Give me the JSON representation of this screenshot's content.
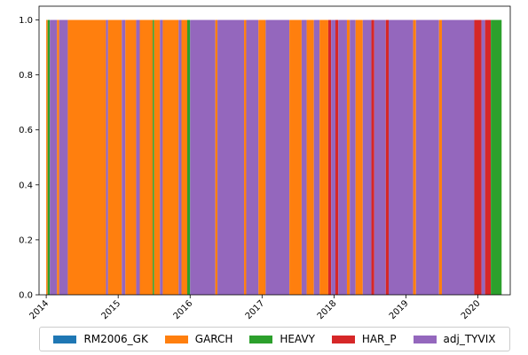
{
  "chart_data": {
    "type": "area",
    "stacked": true,
    "xlabel": "",
    "ylabel": "",
    "xlim": [
      2013.9,
      2020.45
    ],
    "ylim": [
      0.0,
      1.05
    ],
    "yticks": [
      0.0,
      0.2,
      0.4,
      0.6,
      0.8,
      1.0
    ],
    "ytick_labels": [
      "0.0",
      "0.2",
      "0.4",
      "0.6",
      "0.8",
      "1.0"
    ],
    "xticks": [
      2014,
      2015,
      2016,
      2017,
      2018,
      2019,
      2020
    ],
    "xtick_labels": [
      "2014",
      "2015",
      "2016",
      "2017",
      "2018",
      "2019",
      "2020"
    ],
    "legend_position": "bottom-center",
    "series": [
      {
        "name": "RM2006_GK",
        "color": "#1f77b4"
      },
      {
        "name": "GARCH",
        "color": "#ff7f0e"
      },
      {
        "name": "HEAVY",
        "color": "#2ca02c"
      },
      {
        "name": "HAR_P",
        "color": "#d62728"
      },
      {
        "name": "adj_TYVIX",
        "color": "#9467bd"
      }
    ],
    "segments": [
      {
        "start": 2014.0,
        "end": 2014.02,
        "model": "GARCH"
      },
      {
        "start": 2014.02,
        "end": 2014.05,
        "model": "HEAVY"
      },
      {
        "start": 2014.05,
        "end": 2014.15,
        "model": "adj_TYVIX"
      },
      {
        "start": 2014.15,
        "end": 2014.18,
        "model": "GARCH"
      },
      {
        "start": 2014.18,
        "end": 2014.3,
        "model": "adj_TYVIX"
      },
      {
        "start": 2014.3,
        "end": 2014.83,
        "model": "GARCH"
      },
      {
        "start": 2014.83,
        "end": 2014.86,
        "model": "adj_TYVIX"
      },
      {
        "start": 2014.86,
        "end": 2015.05,
        "model": "GARCH"
      },
      {
        "start": 2015.05,
        "end": 2015.1,
        "model": "adj_TYVIX"
      },
      {
        "start": 2015.1,
        "end": 2015.25,
        "model": "GARCH"
      },
      {
        "start": 2015.25,
        "end": 2015.3,
        "model": "adj_TYVIX"
      },
      {
        "start": 2015.3,
        "end": 2015.48,
        "model": "GARCH"
      },
      {
        "start": 2015.48,
        "end": 2015.5,
        "model": "HEAVY"
      },
      {
        "start": 2015.5,
        "end": 2015.58,
        "model": "GARCH"
      },
      {
        "start": 2015.58,
        "end": 2015.62,
        "model": "adj_TYVIX"
      },
      {
        "start": 2015.62,
        "end": 2015.84,
        "model": "GARCH"
      },
      {
        "start": 2015.84,
        "end": 2015.88,
        "model": "adj_TYVIX"
      },
      {
        "start": 2015.88,
        "end": 2015.96,
        "model": "GARCH"
      },
      {
        "start": 2015.96,
        "end": 2016.0,
        "model": "HEAVY"
      },
      {
        "start": 2016.0,
        "end": 2016.35,
        "model": "adj_TYVIX"
      },
      {
        "start": 2016.35,
        "end": 2016.38,
        "model": "GARCH"
      },
      {
        "start": 2016.38,
        "end": 2016.75,
        "model": "adj_TYVIX"
      },
      {
        "start": 2016.75,
        "end": 2016.78,
        "model": "GARCH"
      },
      {
        "start": 2016.78,
        "end": 2016.95,
        "model": "adj_TYVIX"
      },
      {
        "start": 2016.95,
        "end": 2017.05,
        "model": "GARCH"
      },
      {
        "start": 2017.05,
        "end": 2017.38,
        "model": "adj_TYVIX"
      },
      {
        "start": 2017.38,
        "end": 2017.55,
        "model": "GARCH"
      },
      {
        "start": 2017.55,
        "end": 2017.62,
        "model": "adj_TYVIX"
      },
      {
        "start": 2017.62,
        "end": 2017.72,
        "model": "GARCH"
      },
      {
        "start": 2017.72,
        "end": 2017.8,
        "model": "adj_TYVIX"
      },
      {
        "start": 2017.8,
        "end": 2017.92,
        "model": "GARCH"
      },
      {
        "start": 2017.92,
        "end": 2017.96,
        "model": "HAR_P"
      },
      {
        "start": 2017.96,
        "end": 2018.02,
        "model": "adj_TYVIX"
      },
      {
        "start": 2018.02,
        "end": 2018.06,
        "model": "HAR_P"
      },
      {
        "start": 2018.06,
        "end": 2018.18,
        "model": "adj_TYVIX"
      },
      {
        "start": 2018.18,
        "end": 2018.22,
        "model": "GARCH"
      },
      {
        "start": 2018.22,
        "end": 2018.3,
        "model": "adj_TYVIX"
      },
      {
        "start": 2018.3,
        "end": 2018.4,
        "model": "GARCH"
      },
      {
        "start": 2018.4,
        "end": 2018.52,
        "model": "adj_TYVIX"
      },
      {
        "start": 2018.52,
        "end": 2018.56,
        "model": "HAR_P"
      },
      {
        "start": 2018.56,
        "end": 2018.72,
        "model": "adj_TYVIX"
      },
      {
        "start": 2018.72,
        "end": 2018.76,
        "model": "HAR_P"
      },
      {
        "start": 2018.76,
        "end": 2019.1,
        "model": "adj_TYVIX"
      },
      {
        "start": 2019.1,
        "end": 2019.14,
        "model": "GARCH"
      },
      {
        "start": 2019.14,
        "end": 2019.46,
        "model": "adj_TYVIX"
      },
      {
        "start": 2019.46,
        "end": 2019.5,
        "model": "GARCH"
      },
      {
        "start": 2019.5,
        "end": 2019.95,
        "model": "adj_TYVIX"
      },
      {
        "start": 2019.95,
        "end": 2020.05,
        "model": "HAR_P"
      },
      {
        "start": 2020.05,
        "end": 2020.1,
        "model": "adj_TYVIX"
      },
      {
        "start": 2020.1,
        "end": 2020.18,
        "model": "HAR_P"
      },
      {
        "start": 2020.18,
        "end": 2020.33,
        "model": "HEAVY"
      }
    ],
    "grid": false
  }
}
